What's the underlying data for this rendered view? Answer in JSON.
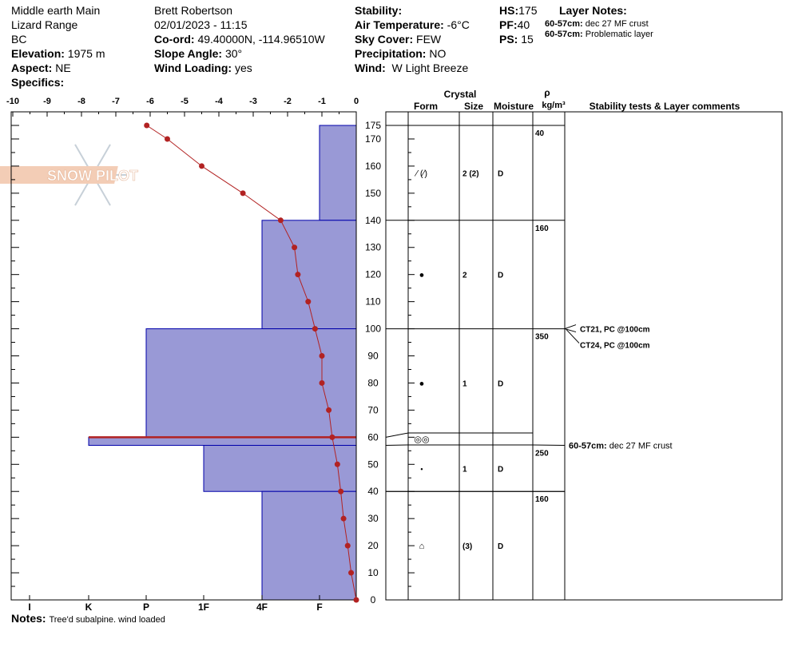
{
  "header": {
    "location": "Middle earth Main",
    "range": "Lizard Range",
    "state": "BC",
    "elevation_label": "Elevation:",
    "elevation_value": "1975 m",
    "aspect_label": "Aspect:",
    "aspect_value": "NE",
    "specifics_label": "Specifics:",
    "observer": "Brett Robertson",
    "datetime": "02/01/2023 - 11:15",
    "coord_label": "Co-ord:",
    "coord_value": "49.40000N, -114.96510W",
    "slope_label": "Slope Angle:",
    "slope_value": "30°",
    "wind_loading_label": "Wind Loading:",
    "wind_loading_value": "yes",
    "stability_label": "Stability:",
    "air_temp_label": "Air Temperature:",
    "air_temp_value": "-6°C",
    "sky_label": "Sky Cover:",
    "sky_value": "FEW",
    "precip_label": "Precipitation:",
    "precip_value": "NO",
    "wind_label": "Wind:",
    "wind_value": "W Light Breeze",
    "hs_label": "HS:",
    "hs_value": "175",
    "pf_label": "PF:",
    "pf_value": "40",
    "ps_label": "PS:",
    "ps_value": "15",
    "layer_notes_label": "Layer Notes:",
    "layer_notes": [
      {
        "range": "60-57cm:",
        "text": "dec 27 MF crust"
      },
      {
        "range": "60-57cm:",
        "text": "Problematic layer"
      }
    ]
  },
  "notes": {
    "label": "Notes:",
    "text": "Tree'd subalpine. wind loaded"
  },
  "logo_text": "SNOW PILOT",
  "colors": {
    "hardness_fill": "#9999d6",
    "hardness_stroke": "#0000aa",
    "temp_line": "#b22222",
    "crust": "#b22222"
  },
  "columns": {
    "crystal": "Crystal",
    "form": "Form",
    "size": "Size",
    "moisture": "Moisture",
    "rho": "ρ",
    "density_unit": "kg/m³",
    "comments": "Stability tests & Layer comments"
  },
  "chart_data": {
    "type": "snow-profile",
    "temp_axis": {
      "ticks": [
        "-10",
        "-9",
        "-8",
        "-7",
        "-6",
        "-5",
        "-4",
        "-3",
        "-2",
        "-1",
        "0"
      ],
      "range": [
        -10,
        0
      ]
    },
    "depth_axis": {
      "range": [
        0,
        175
      ],
      "ticks": [
        "0",
        "10",
        "20",
        "30",
        "40",
        "50",
        "60",
        "70",
        "80",
        "90",
        "100",
        "110",
        "120",
        "130",
        "140",
        "150",
        "160",
        "170",
        "175"
      ]
    },
    "hardness_axis": {
      "ticks": [
        "I",
        "K",
        "P",
        "1F",
        "4F",
        "F"
      ]
    },
    "temperature_profile": [
      {
        "depth": 175,
        "temp": -6.1
      },
      {
        "depth": 170,
        "temp": -5.5
      },
      {
        "depth": 160,
        "temp": -4.5
      },
      {
        "depth": 150,
        "temp": -3.3
      },
      {
        "depth": 140,
        "temp": -2.2
      },
      {
        "depth": 130,
        "temp": -1.8
      },
      {
        "depth": 120,
        "temp": -1.7
      },
      {
        "depth": 110,
        "temp": -1.4
      },
      {
        "depth": 100,
        "temp": -1.2
      },
      {
        "depth": 90,
        "temp": -1.0
      },
      {
        "depth": 80,
        "temp": -1.0
      },
      {
        "depth": 70,
        "temp": -0.8
      },
      {
        "depth": 60,
        "temp": -0.7
      },
      {
        "depth": 50,
        "temp": -0.55
      },
      {
        "depth": 40,
        "temp": -0.45
      },
      {
        "depth": 30,
        "temp": -0.37
      },
      {
        "depth": 20,
        "temp": -0.25
      },
      {
        "depth": 10,
        "temp": -0.15
      },
      {
        "depth": 0,
        "temp": 0
      }
    ],
    "layers": [
      {
        "top": 175,
        "bottom": 140,
        "hardness": "F",
        "form": "DF",
        "size": "2 (2)",
        "moisture": "D",
        "density": "40"
      },
      {
        "top": 140,
        "bottom": 100,
        "hardness": "4F",
        "form": "RG",
        "size": "2",
        "moisture": "D",
        "density": "160"
      },
      {
        "top": 100,
        "bottom": 60,
        "hardness": "P",
        "form": "RG",
        "size": "1",
        "moisture": "D",
        "density": "350"
      },
      {
        "top": 60,
        "bottom": 57,
        "hardness": "K",
        "form": "MF",
        "size": "",
        "moisture": "",
        "density": ""
      },
      {
        "top": 57,
        "bottom": 40,
        "hardness": "1F",
        "form": "RG",
        "size": "1",
        "moisture": "D",
        "density": "250"
      },
      {
        "top": 40,
        "bottom": 0,
        "hardness": "4F",
        "form": "FC",
        "size": "(3)",
        "moisture": "D",
        "density": "160"
      }
    ],
    "crust_depth": 60,
    "stability_tests": [
      {
        "depth": 100,
        "text": "CT21, PC @100cm"
      },
      {
        "depth": 100,
        "text": "CT24, PC @100cm"
      }
    ],
    "layer_comments": [
      {
        "depth": 60,
        "range": "60-57cm:",
        "text": "dec 27 MF crust"
      }
    ]
  }
}
